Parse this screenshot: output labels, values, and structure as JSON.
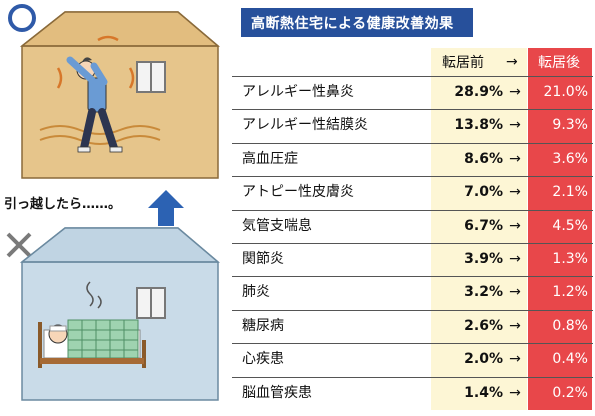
{
  "title": "高断熱住宅による健康改善効果",
  "move_label": "引っ越したら……。",
  "headers": {
    "before": "転居前",
    "arrow": "→",
    "after": "転居後"
  },
  "colors": {
    "title_bg": "#27509b",
    "before_bg": "#fdf6d5",
    "after_bg": "#e8474a",
    "good_house": "#e6c58b",
    "bad_house": "#c9dbe8"
  },
  "symbols": {
    "good": "○",
    "bad": "×"
  },
  "rows": [
    {
      "name": "アレルギー性鼻炎",
      "before": "28.9%",
      "arrow": "→",
      "after": "21.0%"
    },
    {
      "name": "アレルギー性結膜炎",
      "before": "13.8%",
      "arrow": "→",
      "after": "9.3%"
    },
    {
      "name": "高血圧症",
      "before": "8.6%",
      "arrow": "→",
      "after": "3.6%"
    },
    {
      "name": "アトピー性皮膚炎",
      "before": "7.0%",
      "arrow": "→",
      "after": "2.1%"
    },
    {
      "name": "気管支喘息",
      "before": "6.7%",
      "arrow": "→",
      "after": "4.5%"
    },
    {
      "name": "関節炎",
      "before": "3.9%",
      "arrow": "→",
      "after": "1.3%"
    },
    {
      "name": "肺炎",
      "before": "3.2%",
      "arrow": "→",
      "after": "1.2%"
    },
    {
      "name": "糖尿病",
      "before": "2.6%",
      "arrow": "→",
      "after": "0.8%"
    },
    {
      "name": "心疾患",
      "before": "2.0%",
      "arrow": "→",
      "after": "0.4%"
    },
    {
      "name": "脳血管疾患",
      "before": "1.4%",
      "arrow": "→",
      "after": "0.2%"
    }
  ]
}
